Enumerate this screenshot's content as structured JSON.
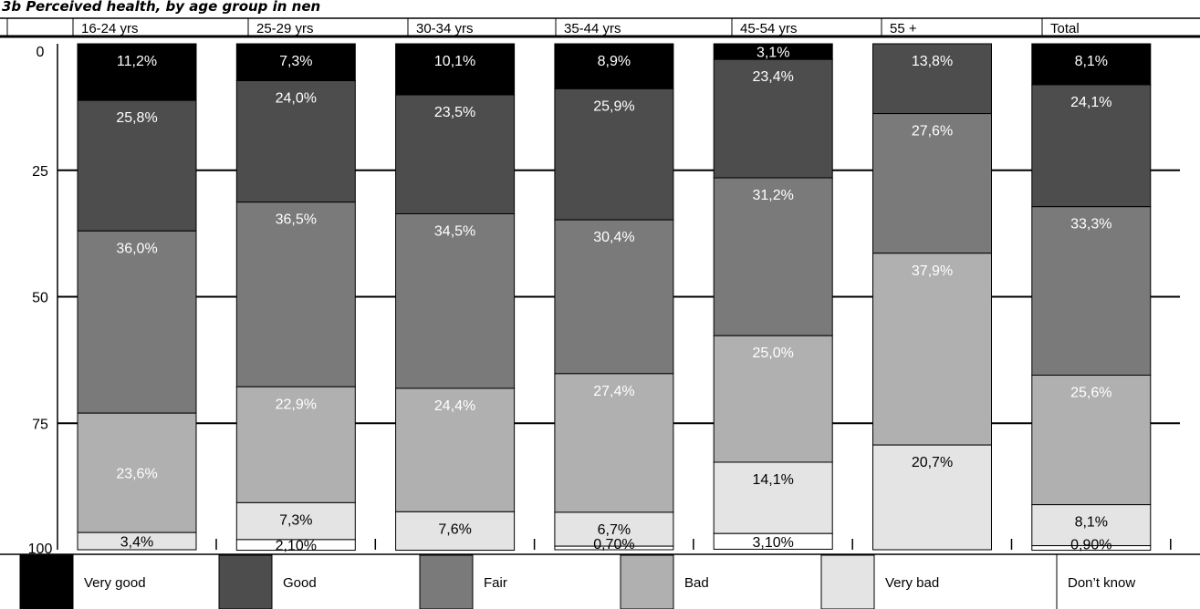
{
  "chart_data": {
    "type": "bar",
    "stacked": true,
    "orientation": "vertical",
    "y_axis_direction": "top-to-bottom",
    "title": "3b Perceived health, by age group in nen",
    "categories": [
      "16-24 yrs",
      "25-29 yrs",
      "30-34 yrs",
      "35-44 yrs",
      "45-54 yrs",
      "55 +",
      "Total"
    ],
    "ylim": [
      0,
      100
    ],
    "yticks": [
      0,
      25,
      50,
      75,
      100
    ],
    "grid": true,
    "legend_position": "bottom",
    "series": [
      {
        "name": "Very good",
        "color": "#000000",
        "values": [
          11.2,
          7.3,
          10.1,
          8.9,
          3.1,
          0,
          8.1
        ],
        "labels": [
          "11,2%",
          "7,3%",
          "10,1%",
          "8,9%",
          "3,1%",
          "",
          "8,1%"
        ]
      },
      {
        "name": "Good",
        "color": "#4d4d4d",
        "values": [
          25.8,
          24.0,
          23.5,
          25.9,
          23.4,
          13.8,
          24.1
        ],
        "labels": [
          "25,8%",
          "24,0%",
          "23,5%",
          "25,9%",
          "23,4%",
          "13,8%",
          "24,1%"
        ]
      },
      {
        "name": "Fair",
        "color": "#7a7a7a",
        "values": [
          36.0,
          36.5,
          34.5,
          30.4,
          31.2,
          27.6,
          33.3
        ],
        "labels": [
          "36,0%",
          "36,5%",
          "34,5%",
          "30,4%",
          "31,2%",
          "27,6%",
          "33,3%"
        ]
      },
      {
        "name": "Bad",
        "color": "#b0b0b0",
        "values": [
          23.6,
          22.9,
          24.4,
          27.4,
          25.0,
          37.9,
          25.6
        ],
        "labels": [
          "23,6%",
          "22,9%",
          "24,4%",
          "27,4%",
          "25,0%",
          "37,9%",
          "25,6%"
        ]
      },
      {
        "name": "Very bad",
        "color": "#e4e4e4",
        "values": [
          3.4,
          7.3,
          7.6,
          6.7,
          14.1,
          20.7,
          8.1
        ],
        "labels": [
          "3,4%",
          "7,3%",
          "7,6%",
          "6,7%",
          "14,1%",
          "20,7%",
          "8,1%"
        ]
      },
      {
        "name": "Don’t know",
        "color": "#ffffff",
        "values": [
          0,
          2.1,
          0,
          0.7,
          3.1,
          0,
          0.9
        ],
        "labels": [
          "",
          "2,10%",
          "",
          "0,70%",
          "3,10%",
          "",
          "0,90%"
        ]
      }
    ]
  }
}
